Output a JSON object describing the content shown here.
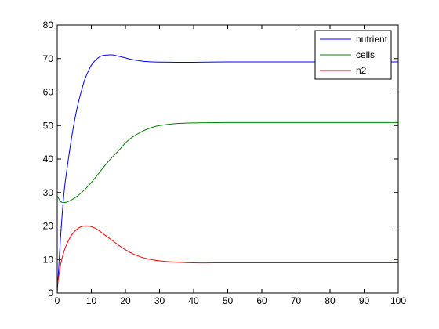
{
  "chart_data": {
    "type": "line",
    "title": "",
    "xlabel": "",
    "ylabel": "",
    "xlim": [
      0,
      100
    ],
    "ylim": [
      0,
      80
    ],
    "xticks": [
      0,
      10,
      20,
      30,
      40,
      50,
      60,
      70,
      80,
      90,
      100
    ],
    "yticks": [
      0,
      10,
      20,
      30,
      40,
      50,
      60,
      70,
      80
    ],
    "grid": false,
    "legend_position": "top-right",
    "series": [
      {
        "name": "nutrient",
        "color": "#0000ff",
        "x": [
          0,
          1,
          2,
          3,
          4,
          5,
          6,
          7,
          8,
          9,
          10,
          11,
          12,
          13,
          14,
          16,
          18,
          20,
          22,
          25,
          28,
          30,
          35,
          40,
          50,
          60,
          70,
          80,
          90,
          100
        ],
        "y": [
          0,
          17,
          30,
          38,
          45,
          51,
          56,
          60,
          63.5,
          66,
          68,
          69.3,
          70.2,
          70.8,
          71,
          71.1,
          70.7,
          70.2,
          69.7,
          69.2,
          69,
          68.95,
          68.9,
          68.9,
          69,
          69,
          69,
          69,
          69,
          69
        ]
      },
      {
        "name": "cells",
        "color": "#008000",
        "x": [
          0,
          1,
          2,
          3,
          4,
          5,
          6,
          8,
          10,
          12,
          15,
          18,
          20,
          22,
          25,
          28,
          30,
          35,
          40,
          50,
          60,
          70,
          80,
          90,
          100
        ],
        "y": [
          29,
          27.3,
          27,
          27.2,
          27.7,
          28.3,
          29,
          30.8,
          33,
          35.5,
          39.3,
          42.5,
          44.8,
          46.5,
          48.3,
          49.5,
          50,
          50.6,
          50.8,
          50.9,
          50.9,
          50.9,
          50.9,
          50.9,
          50.9
        ]
      },
      {
        "name": "n2",
        "color": "#ff0000",
        "x": [
          0,
          1,
          2,
          3,
          4,
          5,
          6,
          7,
          8,
          9,
          10,
          11,
          12,
          14,
          16,
          18,
          20,
          22,
          25,
          28,
          30,
          35,
          40,
          50,
          60,
          70,
          80,
          90,
          100
        ],
        "y": [
          2,
          8.5,
          12.5,
          15,
          17,
          18.3,
          19.2,
          19.8,
          20,
          20,
          19.8,
          19.4,
          18.8,
          17.3,
          15.8,
          14.3,
          12.9,
          11.8,
          10.6,
          9.9,
          9.6,
          9.2,
          9,
          9,
          9,
          9,
          9,
          9,
          9
        ]
      }
    ]
  }
}
